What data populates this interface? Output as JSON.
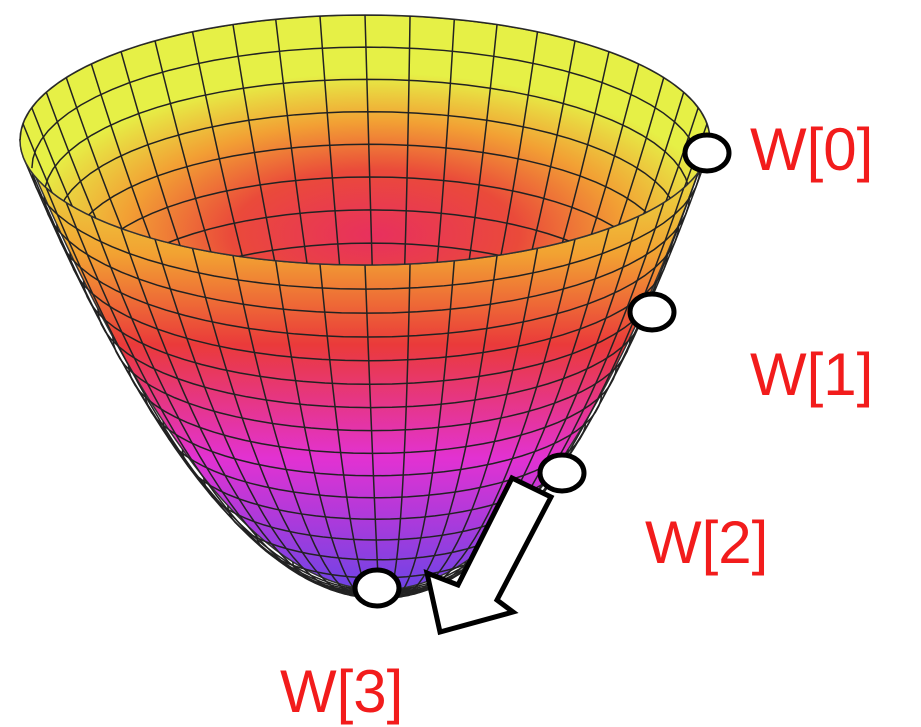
{
  "points": [
    {
      "label": "W[0]"
    },
    {
      "label": "W[1]"
    },
    {
      "label": "W[2]"
    },
    {
      "label": "W[3]"
    }
  ]
}
